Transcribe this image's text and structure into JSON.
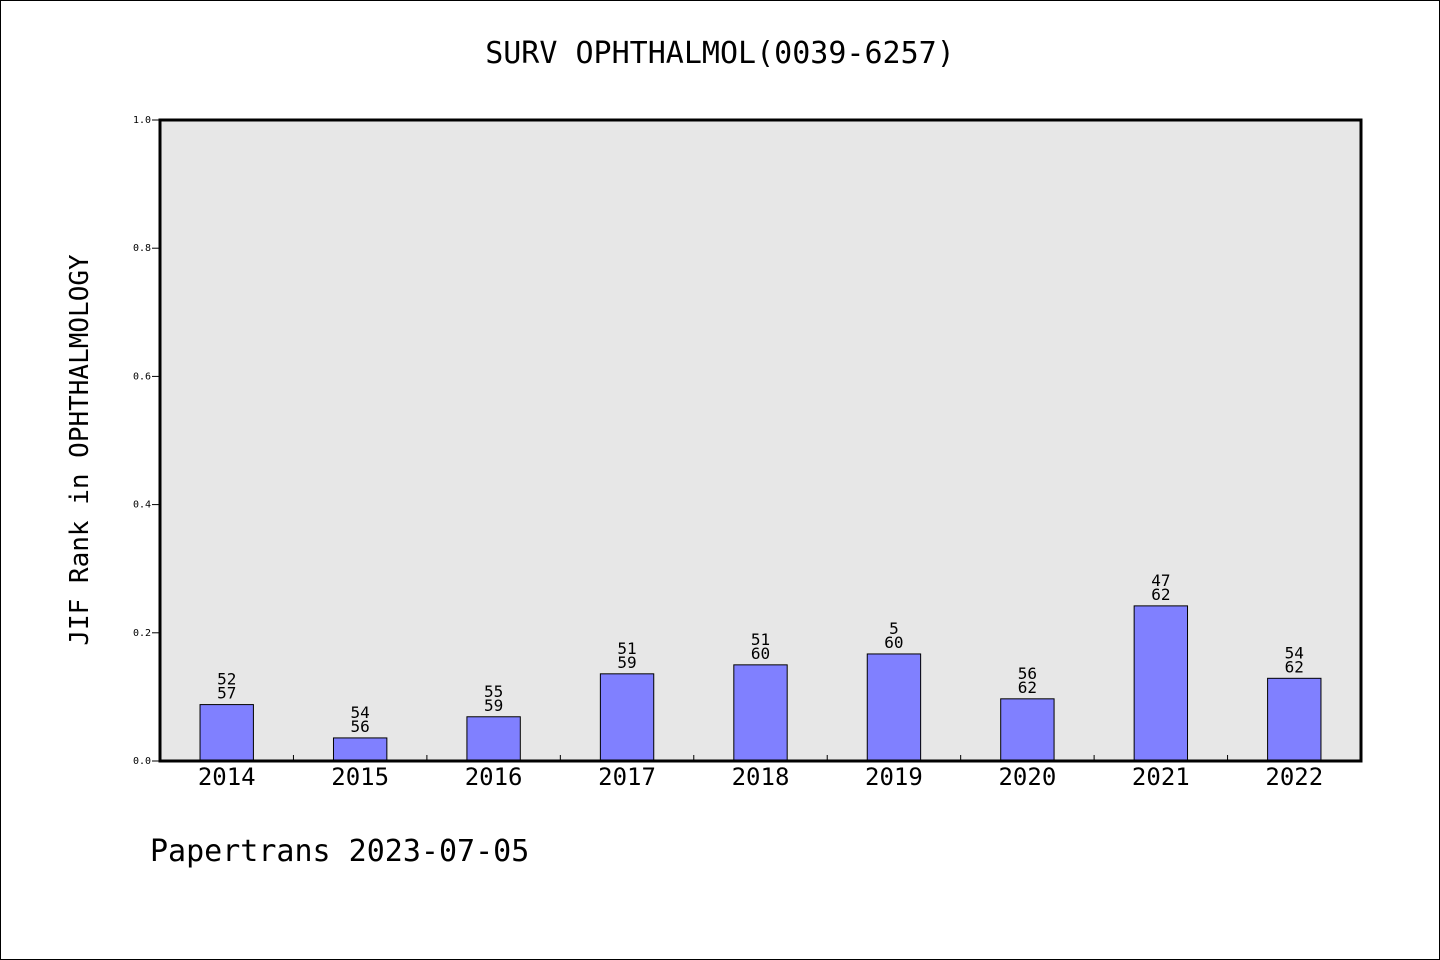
{
  "chart_data": {
    "type": "bar",
    "title": "SURV OPHTHALMOL(0039-6257)",
    "xlabel": "",
    "ylabel": "JIF Rank in OPHTHALMOLOGY",
    "categories": [
      "2014",
      "2015",
      "2016",
      "2017",
      "2018",
      "2019",
      "2020",
      "2021",
      "2022"
    ],
    "values": [
      0.088,
      0.036,
      0.069,
      0.136,
      0.15,
      0.167,
      0.097,
      0.242,
      0.129
    ],
    "bar_labels": [
      [
        "52",
        "57"
      ],
      [
        "54",
        "56"
      ],
      [
        "55",
        "59"
      ],
      [
        "51",
        "59"
      ],
      [
        "51",
        "60"
      ],
      [
        "5",
        "60"
      ],
      [
        "56",
        "62"
      ],
      [
        "47",
        "62"
      ],
      [
        "54",
        "62"
      ]
    ],
    "ylim": [
      0,
      1.0
    ],
    "yticks": [
      "0.0",
      "0.2",
      "0.4",
      "0.6",
      "0.8",
      "1.0"
    ],
    "grid": false,
    "colors": {
      "bar": "#8080ff",
      "plot_bg": "#e7e7e7",
      "axis": "#000000"
    }
  },
  "footer": "Papertrans 2023-07-05"
}
